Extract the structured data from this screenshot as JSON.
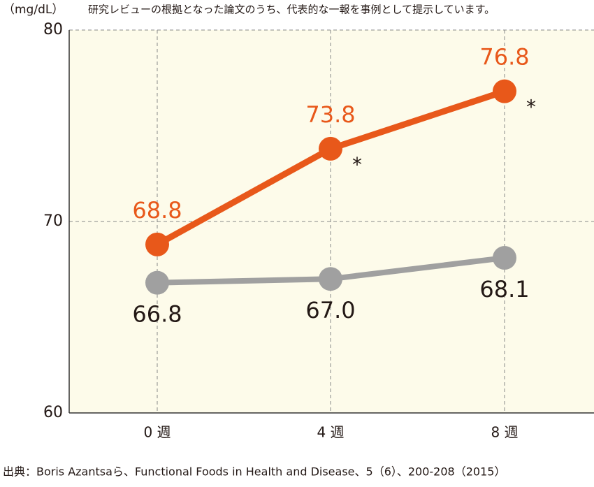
{
  "chart_data": {
    "type": "line",
    "y_unit": "（mg/dL）",
    "note": "研究レビューの根拠となった論文のうち、代表的な一報を事例として提示しています。",
    "source": "出典：Boris Azantsaら、Functional Foods in Health and Disease、5（6）、200-208（2015）",
    "categories": [
      "0 週",
      "4 週",
      "8 週"
    ],
    "series": [
      {
        "color": "#e8581a",
        "values": [
          68.8,
          73.8,
          76.8
        ],
        "value_labels": [
          "68.8",
          "73.8",
          "76.8"
        ],
        "notes": [
          null,
          "*",
          "*"
        ]
      },
      {
        "color": "#a0a0a0",
        "values": [
          66.8,
          67.0,
          68.1
        ],
        "value_labels": [
          "66.8",
          "67.0",
          "68.1"
        ]
      }
    ],
    "ylim": [
      60,
      80
    ],
    "yticks": [
      60,
      70,
      80
    ],
    "grid": true,
    "background": "#fdfbea"
  }
}
